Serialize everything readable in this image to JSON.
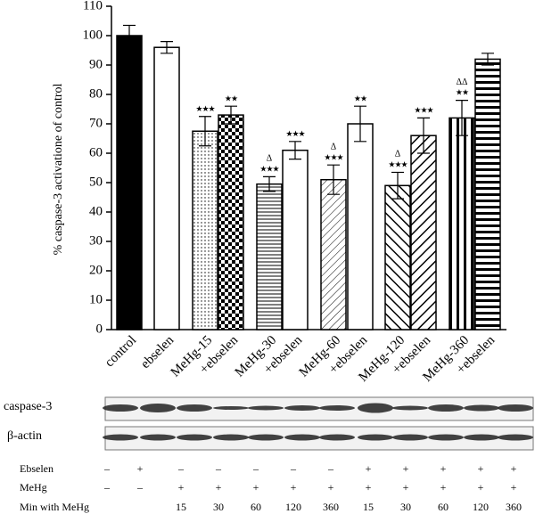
{
  "chart_data": {
    "type": "bar",
    "y_label": "% caspase-3 activatione of control",
    "categories": [
      "control",
      "ebselen",
      "MeHg-15",
      "+ebselen",
      "MeHg-30",
      "+ebselen",
      "MeHg-60",
      "+ebselen",
      "MeHg-120",
      "+ebselen",
      "MeHg-360",
      "+ebselen"
    ],
    "values": [
      100,
      96,
      67.5,
      73,
      49.5,
      61,
      51,
      70,
      49,
      66,
      72,
      92
    ],
    "errors": [
      3.5,
      2,
      5,
      3,
      2.5,
      3,
      5,
      6,
      4.5,
      6,
      6,
      2
    ],
    "significance": [
      null,
      null,
      "★★★",
      "★★",
      "★★★",
      "★★★",
      "★★★",
      "★★",
      "★★★",
      "★★★",
      "★★",
      null
    ],
    "delta": [
      null,
      null,
      null,
      null,
      "Δ",
      null,
      "Δ",
      null,
      "Δ",
      null,
      "ΔΔ",
      null
    ],
    "ylim": [
      0,
      110
    ],
    "yticks": [
      0,
      10,
      20,
      30,
      40,
      50,
      60,
      70,
      80,
      90,
      100,
      110
    ]
  },
  "blot": {
    "labels": [
      "caspase-3",
      "β-actin"
    ]
  },
  "table": {
    "rows": [
      {
        "label": "Ebselen",
        "cells": [
          "–",
          "+",
          "–",
          "–",
          "–",
          "–",
          "–",
          "+",
          "+",
          "+",
          "+",
          "+"
        ]
      },
      {
        "label": "MeHg",
        "cells": [
          "–",
          "–",
          "+",
          "+",
          "+",
          "+",
          "+",
          "+",
          "+",
          "+",
          "+",
          "+"
        ]
      },
      {
        "label": "Min with MeHg",
        "cells": [
          null,
          null,
          15,
          30,
          60,
          120,
          360,
          15,
          30,
          60,
          120,
          360
        ]
      }
    ]
  }
}
